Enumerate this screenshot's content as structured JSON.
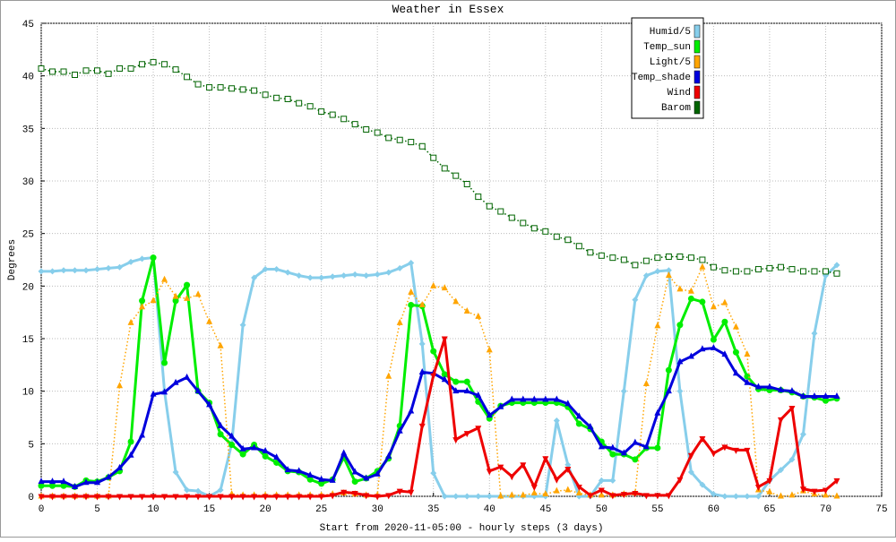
{
  "chart_data": {
    "type": "line",
    "title": "Weather in Essex",
    "xlabel": "Start from 2020-11-05:00 - hourly steps (3 days)",
    "ylabel": "Degrees",
    "xlim": [
      0,
      75
    ],
    "ylim": [
      0,
      45
    ],
    "xticks": [
      0,
      5,
      10,
      15,
      20,
      25,
      30,
      35,
      40,
      45,
      50,
      55,
      60,
      65,
      70,
      75
    ],
    "yticks": [
      0,
      5,
      10,
      15,
      20,
      25,
      30,
      35,
      40,
      45
    ],
    "grid": true,
    "legend": "upper right",
    "x": [
      0,
      1,
      2,
      3,
      4,
      5,
      6,
      7,
      8,
      9,
      10,
      11,
      12,
      13,
      14,
      15,
      16,
      17,
      18,
      19,
      20,
      21,
      22,
      23,
      24,
      25,
      26,
      27,
      28,
      29,
      30,
      31,
      32,
      33,
      34,
      35,
      36,
      37,
      38,
      39,
      40,
      41,
      42,
      43,
      44,
      45,
      46,
      47,
      48,
      49,
      50,
      51,
      52,
      53,
      54,
      55,
      56,
      57,
      58,
      59,
      60,
      61,
      62,
      63,
      64,
      65,
      66,
      67,
      68,
      69,
      70,
      71
    ],
    "series": [
      {
        "name": "Humid/5",
        "color": "#87ceeb",
        "marker": "diamond",
        "style": "solid",
        "values": [
          21.4,
          21.4,
          21.5,
          21.5,
          21.5,
          21.6,
          21.7,
          21.8,
          22.3,
          22.6,
          22.7,
          10.0,
          2.3,
          0.6,
          0.5,
          0.0,
          0.6,
          5.0,
          16.3,
          20.8,
          21.6,
          21.6,
          21.3,
          21.0,
          20.8,
          20.8,
          20.9,
          21.0,
          21.1,
          21.0,
          21.1,
          21.3,
          21.7,
          22.2,
          14.5,
          2.2,
          0,
          0,
          0,
          0,
          0,
          0,
          0,
          0,
          0,
          0,
          7.2,
          3.0,
          0,
          0,
          1.5,
          1.5,
          10.0,
          18.7,
          21.0,
          21.4,
          21.5,
          10.0,
          2.3,
          1.1,
          0.2,
          0,
          0,
          0,
          0,
          1.5,
          2.5,
          3.5,
          5.9,
          15.5,
          21.0,
          22.0
        ]
      },
      {
        "name": "Temp_sun",
        "color": "#00ee00",
        "marker": "circle",
        "style": "solid",
        "values": [
          1.0,
          1.0,
          1.0,
          0.9,
          1.5,
          1.4,
          1.8,
          2.4,
          5.2,
          18.6,
          22.7,
          12.7,
          18.6,
          20.1,
          10.0,
          8.9,
          5.9,
          4.9,
          4.0,
          4.9,
          3.8,
          3.2,
          2.4,
          2.3,
          1.6,
          1.2,
          1.6,
          3.7,
          1.4,
          1.7,
          2.4,
          3.6,
          6.7,
          18.2,
          18.1,
          13.8,
          11.6,
          10.9,
          10.9,
          9.0,
          7.4,
          8.6,
          8.9,
          8.9,
          8.9,
          8.9,
          8.9,
          8.5,
          6.9,
          6.4,
          5.2,
          4.0,
          4.0,
          3.5,
          4.6,
          4.6,
          12.0,
          16.3,
          18.8,
          18.5,
          14.9,
          16.6,
          13.7,
          11.4,
          10.2,
          10.1,
          10.1,
          9.9,
          9.5,
          9.4,
          9.1,
          9.3
        ]
      },
      {
        "name": "Light/5",
        "color": "#ffa500",
        "marker": "triangle-up",
        "style": "dotted",
        "values": [
          0,
          0,
          0,
          0,
          0,
          0,
          0,
          10.5,
          16.5,
          18.0,
          18.6,
          20.6,
          19.0,
          18.8,
          19.2,
          16.6,
          14.3,
          0.2,
          0.1,
          0.1,
          0.1,
          0.1,
          0.1,
          0.1,
          0.1,
          0.1,
          0.2,
          0.3,
          0.2,
          0.1,
          0.1,
          11.4,
          16.5,
          19.4,
          18.2,
          20.0,
          19.8,
          18.5,
          17.6,
          17.1,
          13.9,
          0,
          0.1,
          0.1,
          0.3,
          0.2,
          0.5,
          0.6,
          0.3,
          0.1,
          0.1,
          0.1,
          0.2,
          0.3,
          10.7,
          16.2,
          21.0,
          19.7,
          19.5,
          21.8,
          18.0,
          18.4,
          16.1,
          13.5,
          0.6,
          0.4,
          0,
          0.1,
          0.5,
          0.2,
          0.1,
          0
        ]
      },
      {
        "name": "Temp_shade",
        "color": "#0000dd",
        "marker": "triangle-up",
        "style": "solid",
        "values": [
          1.4,
          1.4,
          1.4,
          0.9,
          1.3,
          1.3,
          1.8,
          2.7,
          3.9,
          5.8,
          9.7,
          9.9,
          10.8,
          11.3,
          10.0,
          8.7,
          6.7,
          5.7,
          4.5,
          4.6,
          4.3,
          3.7,
          2.5,
          2.4,
          2.0,
          1.6,
          1.5,
          4.1,
          2.3,
          1.7,
          2.1,
          3.8,
          6.2,
          8.1,
          11.8,
          11.7,
          11.1,
          10.0,
          10.0,
          9.6,
          7.7,
          8.5,
          9.2,
          9.2,
          9.2,
          9.2,
          9.2,
          8.8,
          7.6,
          6.6,
          4.7,
          4.6,
          4.1,
          5.1,
          4.7,
          7.9,
          10.0,
          12.8,
          13.3,
          14.0,
          14.1,
          13.5,
          11.7,
          10.8,
          10.4,
          10.4,
          10.1,
          10.0,
          9.5,
          9.5,
          9.5,
          9.5
        ]
      },
      {
        "name": "Wind",
        "color": "#ee0000",
        "marker": "triangle-down",
        "style": "solid",
        "values": [
          0,
          0,
          0,
          0,
          0,
          0,
          0,
          0,
          0,
          0,
          0,
          0,
          0,
          0,
          0,
          0,
          0,
          0,
          0,
          0,
          0,
          0,
          0,
          0,
          0,
          0,
          0.1,
          0.4,
          0.3,
          0.1,
          0,
          0.1,
          0.5,
          0.4,
          6.7,
          11.5,
          15.0,
          5.4,
          6.0,
          6.5,
          2.4,
          2.8,
          1.9,
          3.0,
          0.9,
          3.6,
          1.6,
          2.6,
          0.9,
          0.1,
          0.6,
          0.1,
          0.2,
          0.3,
          0.1,
          0.1,
          0.1,
          1.6,
          3.9,
          5.5,
          4.1,
          4.7,
          4.4,
          4.4,
          0.9,
          1.5,
          7.3,
          8.4,
          0.7,
          0.5,
          0.6,
          1.5
        ]
      },
      {
        "name": "Barom",
        "color": "#006400",
        "marker": "square",
        "style": "dotted",
        "values": [
          40.7,
          40.4,
          40.4,
          40.1,
          40.5,
          40.5,
          40.2,
          40.7,
          40.7,
          41.1,
          41.3,
          41.1,
          40.6,
          39.9,
          39.2,
          38.9,
          38.9,
          38.8,
          38.7,
          38.6,
          38.2,
          37.9,
          37.8,
          37.4,
          37.1,
          36.6,
          36.3,
          35.9,
          35.4,
          34.9,
          34.6,
          34.1,
          33.9,
          33.7,
          33.3,
          32.2,
          31.2,
          30.5,
          29.7,
          28.5,
          27.6,
          27.1,
          26.5,
          26.0,
          25.5,
          25.2,
          24.7,
          24.4,
          23.8,
          23.2,
          22.9,
          22.7,
          22.5,
          22.0,
          22.4,
          22.7,
          22.8,
          22.8,
          22.7,
          22.5,
          21.8,
          21.5,
          21.4,
          21.4,
          21.6,
          21.7,
          21.8,
          21.6,
          21.4,
          21.4,
          21.4,
          21.2
        ]
      }
    ]
  }
}
